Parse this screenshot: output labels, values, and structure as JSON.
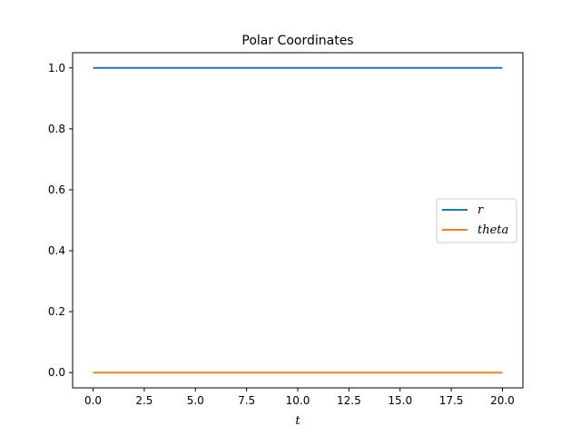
{
  "chart_data": {
    "type": "line",
    "title": "Polar Coordinates",
    "xlabel": "t",
    "ylabel": "",
    "xlim": [
      -1.0,
      21.0
    ],
    "ylim": [
      -0.05,
      1.05
    ],
    "xticks": [
      0,
      2.5,
      5,
      7.5,
      10,
      12.5,
      15,
      17.5,
      20
    ],
    "xtick_labels": [
      "0.0",
      "2.5",
      "5.0",
      "7.5",
      "10.0",
      "12.5",
      "15.0",
      "17.5",
      "20.0"
    ],
    "yticks": [
      0,
      0.2,
      0.4,
      0.6,
      0.8,
      1.0
    ],
    "ytick_labels": [
      "0.0",
      "0.2",
      "0.4",
      "0.6",
      "0.8",
      "1.0"
    ],
    "grid": false,
    "legend_position": "center-right",
    "series": [
      {
        "name": "r",
        "color": "#1f77b4",
        "x": [
          0,
          20
        ],
        "y": [
          1.0,
          1.0
        ]
      },
      {
        "name": "theta",
        "color": "#ff7f0e",
        "x": [
          0,
          20
        ],
        "y": [
          0.0,
          0.0
        ]
      }
    ]
  }
}
